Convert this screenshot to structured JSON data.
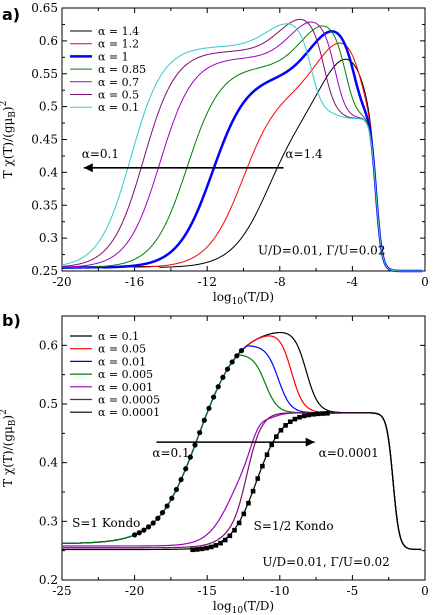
{
  "chart_data": [
    {
      "panel": "a)",
      "type": "line",
      "xlabel": "log10(T/D)",
      "ylabel": "T χ(T)/(gμB)²",
      "xlim": [
        -20,
        0
      ],
      "ylim": [
        0.25,
        0.65
      ],
      "xticks": [
        -20,
        -16,
        -12,
        -8,
        -4,
        0
      ],
      "yticks": [
        0.25,
        0.3,
        0.35,
        0.4,
        0.45,
        0.5,
        0.55,
        0.6,
        0.65
      ],
      "legend_position": "top-left",
      "annotation_params": "U/D=0.01, Γ/U=0.02",
      "arrow": {
        "from_label": "α=1.4",
        "to_label": "α=0.1",
        "x_from": -7.8,
        "x_to": -18.8,
        "y": 0.407
      },
      "series": [
        {
          "name": "α = 1.4",
          "color": "#000000",
          "width": 1,
          "center": -8.6,
          "rise": 0.33,
          "plateau": 0.502,
          "peak": 0.578,
          "peak_x": -4.35
        },
        {
          "name": "α = 1.2",
          "color": "#ff0000",
          "width": 1,
          "center": -10.0,
          "rise": 0.34,
          "plateau": 0.53,
          "peak": 0.6,
          "peak_x": -4.6
        },
        {
          "name": "α = 1",
          "color": "#0000ff",
          "width": 2.5,
          "center": -11.7,
          "rise": 0.35,
          "plateau": 0.548,
          "peak": 0.617,
          "peak_x": -5.0
        },
        {
          "name": "α = 0.85",
          "color": "#008000",
          "width": 1,
          "center": -13.1,
          "rise": 0.36,
          "plateau": 0.562,
          "peak": 0.625,
          "peak_x": -5.5
        },
        {
          "name": "α = 0.7",
          "color": "#a000c0",
          "width": 1,
          "center": -14.6,
          "rise": 0.37,
          "plateau": 0.575,
          "peak": 0.631,
          "peak_x": -6.1
        },
        {
          "name": "α = 0.5",
          "color": "#7a0f70",
          "width": 1,
          "center": -15.5,
          "rise": 0.38,
          "plateau": 0.585,
          "peak": 0.635,
          "peak_x": -6.7
        },
        {
          "name": "α = 0.1",
          "color": "#33cccc",
          "width": 1,
          "center": -16.2,
          "rise": 0.38,
          "plateau": 0.592,
          "peak": 0.628,
          "peak_x": -7.4
        }
      ]
    },
    {
      "panel": "b)",
      "type": "line",
      "xlabel": "log10(T/D)",
      "ylabel": "T χ(T)/(gμB)²",
      "xlim": [
        -25,
        0
      ],
      "ylim": [
        0.2,
        0.65
      ],
      "xticks": [
        -25,
        -20,
        -15,
        -10,
        -5,
        0
      ],
      "yticks": [
        0.2,
        0.3,
        0.4,
        0.5,
        0.6
      ],
      "legend_position": "top-left",
      "annotation_params": "U/D=0.01, Γ/U=0.02",
      "annotations": [
        "S=1 Kondo",
        "S=1/2 Kondo"
      ],
      "arrow": {
        "from_label": "α=0.1",
        "to_label": "α=0.0001",
        "x_from": -18.5,
        "x_to": -7.6,
        "y": 0.435
      },
      "series": [
        {
          "name": "α = 0.1",
          "color": "#000000",
          "peak": 0.63,
          "peak_x": -7.8
        },
        {
          "name": "α = 0.05",
          "color": "#ff0000",
          "peak": 0.625,
          "peak_x": -8.8
        },
        {
          "name": "α = 0.01",
          "color": "#0000ff",
          "peak": 0.6,
          "peak_x": -9.7
        },
        {
          "name": "α = 0.005",
          "color": "#008000",
          "peak": 0.585,
          "peak_x": -10.6
        },
        {
          "name": "α = 0.001",
          "color": "#a000c0",
          "peak": 0.48,
          "peak_x": -11.5
        },
        {
          "name": "α = 0.0005",
          "color": "#7a0f70",
          "peak": 0.475,
          "peak_x": -12.0
        },
        {
          "name": "α = 0.0001",
          "color": "#000000",
          "peak": 0.47,
          "peak_x": -12.6
        }
      ],
      "kondo_s1": {
        "center": -15.6,
        "rise": 0.42,
        "low": 0.262,
        "high": 0.63,
        "x_start": -20,
        "x_end": -12.6
      },
      "kondo_s12": {
        "center": -11.6,
        "rise": 0.7,
        "low": 0.25,
        "high": 0.485,
        "x_start": -16,
        "x_end": -6.5
      },
      "base": {
        "low_s1": 0.262,
        "low_s12": 0.252,
        "plateau": 0.485
      }
    }
  ]
}
